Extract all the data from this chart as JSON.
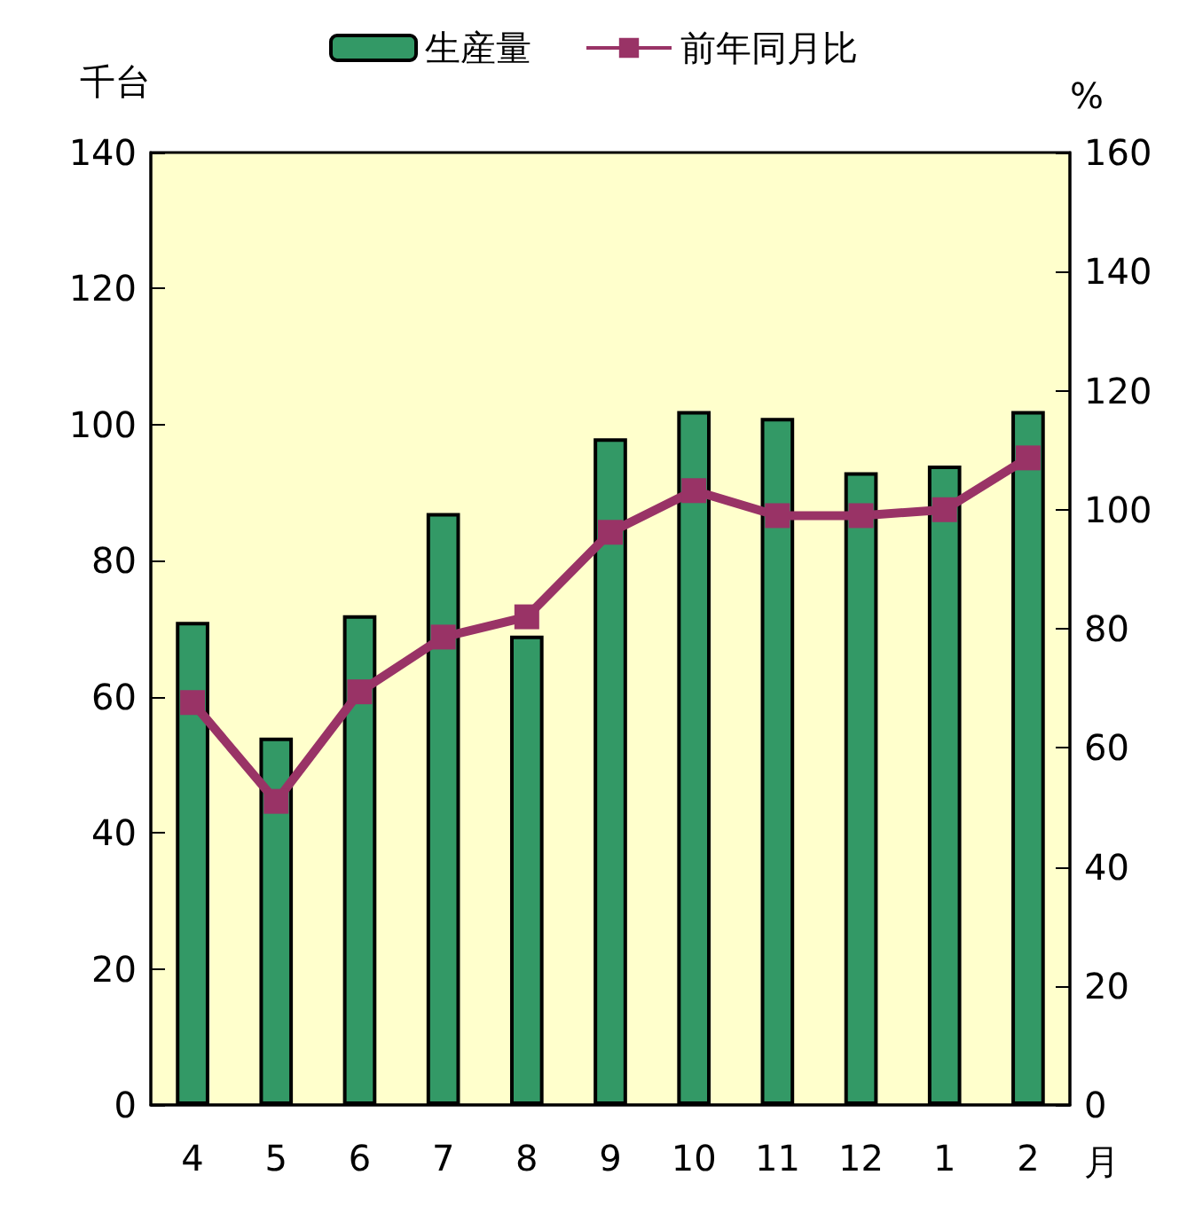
{
  "chart_data": {
    "type": "bar",
    "ylabel": "千台",
    "y2label": "%",
    "xlabel": "月",
    "categories": [
      "4",
      "5",
      "6",
      "7",
      "8",
      "9",
      "10",
      "11",
      "12",
      "1",
      "2"
    ],
    "series": [
      {
        "name": "生産量",
        "color": "#339966",
        "values": [
          71,
          54,
          72,
          87,
          69,
          98,
          102,
          101,
          93,
          94,
          102
        ]
      },
      {
        "name": "前年同月比",
        "type": "line",
        "axis": "y2",
        "color": "#993366",
        "marker": "square",
        "values": [
          67.6,
          51,
          69.4,
          78.6,
          82,
          96.2,
          103.2,
          99,
          99,
          100,
          108.7
        ]
      }
    ],
    "ylim": [
      0,
      140
    ],
    "yticks": [
      0,
      20,
      40,
      60,
      80,
      100,
      120,
      140
    ],
    "y2lim": [
      0,
      160
    ],
    "y2ticks": [
      0,
      20,
      40,
      60,
      80,
      100,
      120,
      140,
      160
    ],
    "grid": false,
    "legend": "top"
  }
}
